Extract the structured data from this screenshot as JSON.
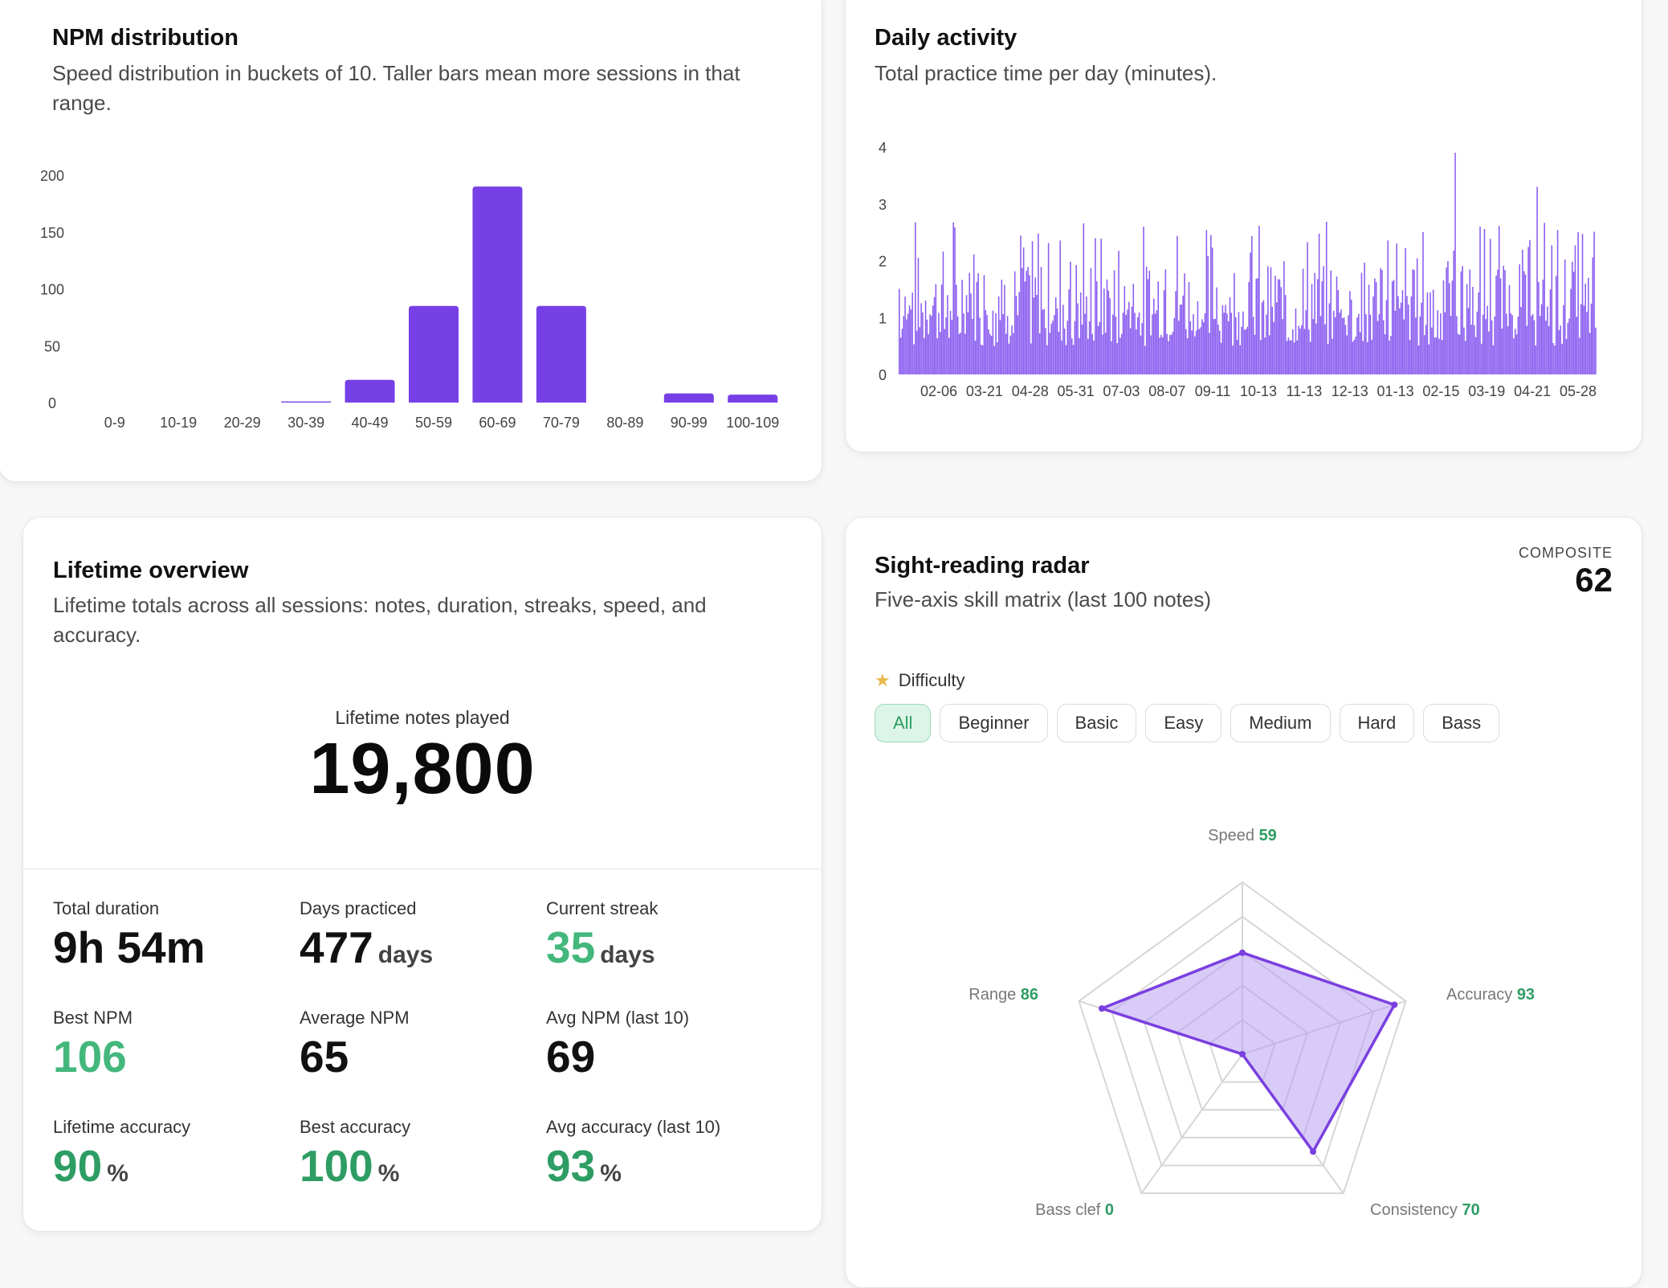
{
  "npm_card": {
    "title": "NPM distribution",
    "subtitle": "Speed distribution in buckets of 10. Taller bars mean more sessions in that range."
  },
  "daily_card": {
    "title": "Daily activity",
    "subtitle": "Total practice time per day (minutes)."
  },
  "lifetime": {
    "title": "Lifetime overview",
    "subtitle": "Lifetime totals across all sessions: notes, duration, streaks, speed, and accuracy.",
    "hero_label": "Lifetime notes played",
    "hero_value": "19,800",
    "stats": [
      {
        "label": "Total duration",
        "value": "9h 54m",
        "unit": ""
      },
      {
        "label": "Days practiced",
        "value": "477",
        "unit": "days"
      },
      {
        "label": "Current streak",
        "value": "35",
        "unit": "days"
      },
      {
        "label": "Best NPM",
        "value": "106",
        "unit": ""
      },
      {
        "label": "Average NPM",
        "value": "65",
        "unit": ""
      },
      {
        "label": "Avg NPM (last 10)",
        "value": "69",
        "unit": ""
      },
      {
        "label": "Lifetime accuracy",
        "value": "90",
        "unit": "%"
      },
      {
        "label": "Best accuracy",
        "value": "100",
        "unit": "%"
      },
      {
        "label": "Avg accuracy (last 10)",
        "value": "93",
        "unit": "%"
      }
    ]
  },
  "radar_card": {
    "title": "Sight-reading radar",
    "subtitle": "Five-axis skill matrix (last 100 notes)",
    "composite_label": "COMPOSITE",
    "composite_value": "62",
    "difficulty_label": "Difficulty",
    "difficulty_icon": "star-icon",
    "chips": [
      "All",
      "Beginner",
      "Basic",
      "Easy",
      "Medium",
      "Hard",
      "Bass"
    ],
    "selected_chip": "All"
  },
  "colors": {
    "bar": "#7640e6",
    "activity": "#8a5cf0",
    "radar_stroke": "#7a3fe0",
    "radar_fill": "#b9a0f0",
    "value_green": "#2e9d64",
    "streak_green": "#43b77c"
  },
  "chart_data": [
    {
      "type": "bar",
      "categories": [
        "0-9",
        "10-19",
        "20-29",
        "30-39",
        "40-49",
        "50-59",
        "60-69",
        "70-79",
        "80-89",
        "90-99",
        "100-109"
      ],
      "values": [
        0,
        0,
        0,
        1,
        20,
        85,
        190,
        85,
        0,
        8,
        7
      ],
      "yticks": [
        "0",
        "50",
        "100",
        "150",
        "200"
      ],
      "ylim": [
        0,
        200
      ]
    },
    {
      "type": "bar",
      "xticks": [
        "02-06",
        "03-21",
        "04-28",
        "05-31",
        "07-03",
        "08-07",
        "09-11",
        "10-13",
        "11-13",
        "12-13",
        "01-13",
        "02-15",
        "03-19",
        "04-21",
        "05-28"
      ],
      "yticks": [
        "0",
        "1",
        "2",
        "3",
        "4"
      ],
      "ylim": [
        0,
        4
      ],
      "n_days": 477,
      "peaks": [
        2.9,
        2.6,
        2.8,
        2.7
      ]
    },
    {
      "type": "radar",
      "axes": [
        {
          "label": "Speed",
          "value": 59
        },
        {
          "label": "Accuracy",
          "value": 93
        },
        {
          "label": "Consistency",
          "value": 70
        },
        {
          "label": "Bass clef",
          "value": 0
        },
        {
          "label": "Range",
          "value": 86
        }
      ],
      "max": 100,
      "rings": 5
    }
  ]
}
